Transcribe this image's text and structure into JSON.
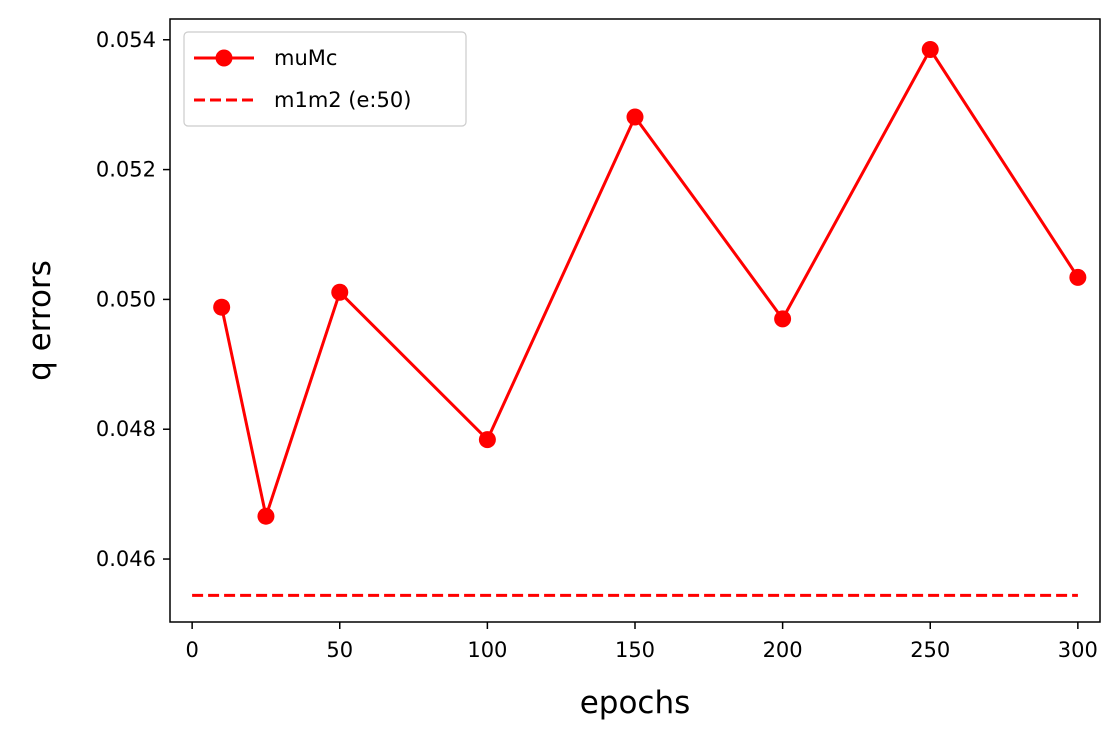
{
  "chart_data": {
    "type": "line",
    "title": "",
    "xlabel": "epochs",
    "ylabel": "q errors",
    "xlim": [
      -7.5,
      307.5
    ],
    "ylim": [
      0.04503,
      0.05432
    ],
    "xticks": [
      0,
      50,
      100,
      150,
      200,
      250,
      300
    ],
    "xtick_labels": [
      "0",
      "50",
      "100",
      "150",
      "200",
      "250",
      "300"
    ],
    "yticks": [
      0.046,
      0.048,
      0.05,
      0.052,
      0.054
    ],
    "ytick_labels": [
      "0.046",
      "0.048",
      "0.050",
      "0.052",
      "0.054"
    ],
    "grid": false,
    "legend": "upper-left",
    "series": [
      {
        "name": "muMc",
        "style": "solid-with-markers",
        "color": "#ff0000",
        "x": [
          10,
          25,
          50,
          100,
          150,
          200,
          250,
          300
        ],
        "y": [
          0.04988,
          0.04666,
          0.05011,
          0.04784,
          0.05281,
          0.0497,
          0.05385,
          0.05034
        ]
      },
      {
        "name": "m1m2 (e:50)",
        "style": "dashed",
        "color": "#ff0000",
        "x": [
          0,
          300
        ],
        "y": [
          0.04544,
          0.04544
        ]
      }
    ]
  }
}
